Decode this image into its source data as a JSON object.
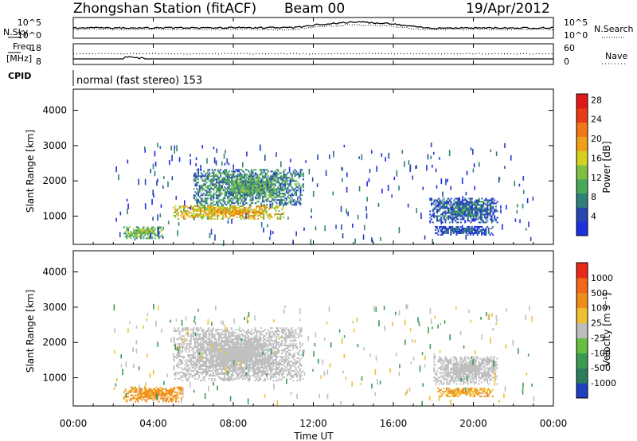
{
  "header": {
    "station": "Zhongshan Station (fitACF)",
    "beam": "Beam 00",
    "date": "19/Apr/2012"
  },
  "top_panels": {
    "nsky_label": "N.Sky",
    "nsearch_label": "N.Search",
    "freq_label": "Freq.",
    "freq_unit": "[MHz]",
    "nave_label": "Nave",
    "cpid_label": "CPID",
    "cpid_text": "normal (fast stereo) 153",
    "noise_ticks_left": [
      "10^5",
      "10^0"
    ],
    "noise_ticks_right": [
      "10^5",
      "10^0"
    ],
    "freq_ticks": [
      "18",
      "8"
    ],
    "nave_ticks": [
      "60",
      "0"
    ]
  },
  "x_axis": {
    "label": "Time UT",
    "ticks": [
      "00:00",
      "04:00",
      "08:00",
      "12:00",
      "16:00",
      "20:00",
      "00:00"
    ]
  },
  "chart_data": [
    {
      "type": "heatmap",
      "panel": "power",
      "ylabel": "Slant Range [km]",
      "yticks": [
        "1000",
        "2000",
        "3000",
        "4000"
      ],
      "ylim": [
        200,
        4600
      ],
      "xlim": [
        "00:00",
        "24:00"
      ],
      "colorbar": {
        "label": "Power [dB]",
        "ticks": [
          "4",
          "8",
          "12",
          "16",
          "20",
          "24",
          "28"
        ],
        "colors": [
          "#1e2fe0",
          "#2846b0",
          "#2f7f7a",
          "#4aa85a",
          "#80c040",
          "#d8d020",
          "#f0a018",
          "#f07818",
          "#e83c18",
          "#e01818"
        ]
      },
      "echo_regions": [
        {
          "t0": 5.0,
          "t1": 10.5,
          "r0": 900,
          "r1": 1300,
          "power_db": 20
        },
        {
          "t0": 6.0,
          "t1": 11.5,
          "r0": 1300,
          "r1": 2300,
          "power_db": 11
        },
        {
          "t0": 2.5,
          "t1": 4.5,
          "r0": 350,
          "r1": 700,
          "power_db": 15
        },
        {
          "t0": 17.8,
          "t1": 21.2,
          "r0": 800,
          "r1": 1500,
          "power_db": 8
        },
        {
          "t0": 18.0,
          "t1": 21.0,
          "r0": 450,
          "r1": 700,
          "power_db": 6
        }
      ]
    },
    {
      "type": "heatmap",
      "panel": "velocity",
      "ylabel": "Slant Range [km]",
      "yticks": [
        "1000",
        "2000",
        "3000",
        "4000"
      ],
      "ylim": [
        200,
        4600
      ],
      "xlim": [
        "00:00",
        "24:00"
      ],
      "colorbar": {
        "label": "Velocity [m s⁻¹]",
        "ticks": [
          "1000",
          "500",
          "100",
          "25",
          "-25",
          "-100",
          "-500",
          "-1000"
        ],
        "colors": [
          "#2040c0",
          "#2c7c60",
          "#3a9a50",
          "#66c040",
          "#bebebe",
          "#f0c030",
          "#f08c1a",
          "#f06818",
          "#e82a18"
        ]
      },
      "echo_regions": [
        {
          "t0": 5.0,
          "t1": 11.5,
          "r0": 900,
          "r1": 2400,
          "velocity": 0
        },
        {
          "t0": 2.5,
          "t1": 5.5,
          "r0": 300,
          "r1": 750,
          "velocity": -150
        },
        {
          "t0": 18.0,
          "t1": 21.2,
          "r0": 800,
          "r1": 1600,
          "velocity": 0
        },
        {
          "t0": 18.2,
          "t1": 21.0,
          "r0": 450,
          "r1": 700,
          "velocity": -100
        }
      ]
    }
  ],
  "colors": {
    "axis": "#000000",
    "noise_series": "#000000"
  }
}
